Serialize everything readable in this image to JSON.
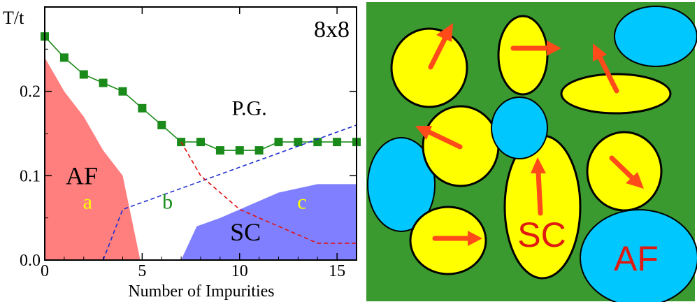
{
  "chart_data": {
    "type": "line",
    "label": "8x8",
    "xlabel": "Number of Impurities",
    "ylabel": "T/t",
    "xlim": [
      0,
      16
    ],
    "ylim": [
      0,
      0.3
    ],
    "x_ticks": [
      "0",
      "5",
      "10",
      "15"
    ],
    "x_tick_values": [
      0,
      5,
      10,
      15
    ],
    "y_ticks": [
      "0.0",
      "0.1",
      "0.2"
    ],
    "y_tick_values": [
      0.0,
      0.1,
      0.2
    ],
    "series": [
      {
        "kind": "markers-line",
        "color": "#1a8a1a",
        "x": [
          0,
          1,
          2,
          3,
          4,
          5,
          6,
          7,
          8,
          9,
          10,
          11,
          12,
          13,
          14,
          15,
          16
        ],
        "y": [
          0.265,
          0.24,
          0.22,
          0.21,
          0.2,
          0.18,
          0.16,
          0.14,
          0.14,
          0.13,
          0.13,
          0.13,
          0.14,
          0.14,
          0.14,
          0.14,
          0.14
        ]
      },
      {
        "kind": "dashed",
        "color": "#1f2fd0",
        "x": [
          3,
          4,
          16
        ],
        "y": [
          0,
          0.06,
          0.16
        ]
      },
      {
        "kind": "dashed",
        "color": "#e01010",
        "x": [
          7,
          8,
          10,
          14,
          16
        ],
        "y": [
          0.14,
          0.1,
          0.06,
          0.02,
          0.02
        ]
      }
    ],
    "regions": [
      {
        "name": "AF",
        "color": "#ff7f7f",
        "x": [
          0,
          0,
          1,
          2,
          3,
          4,
          4.9,
          0
        ],
        "y": [
          0,
          0.24,
          0.2,
          0.17,
          0.13,
          0.1,
          0,
          0
        ]
      },
      {
        "name": "SC",
        "color": "#7f7fff",
        "x": [
          7,
          7.8,
          9,
          10.5,
          12,
          14,
          16,
          16,
          7
        ],
        "y": [
          0,
          0.04,
          0.05,
          0.065,
          0.08,
          0.09,
          0.09,
          0,
          0
        ]
      }
    ],
    "annotations": [
      {
        "text": "AF",
        "x": 1.9,
        "y": 0.09,
        "color": "#000000",
        "size": 36
      },
      {
        "text": "a",
        "x": 2.2,
        "y": 0.061,
        "color": "#ffff00",
        "size": 30
      },
      {
        "text": "b",
        "x": 6.3,
        "y": 0.061,
        "color": "#1a8a1a",
        "size": 30
      },
      {
        "text": "c",
        "x": 13.2,
        "y": 0.061,
        "color": "#ffff00",
        "size": 30
      },
      {
        "text": "SC",
        "x": 10.3,
        "y": 0.023,
        "color": "#000000",
        "size": 36
      },
      {
        "text": "P.G.",
        "x": 10.5,
        "y": 0.172,
        "color": "#000000",
        "size": 30
      }
    ]
  },
  "schematic": {
    "background": "#3a9a30",
    "grain_color": "#ffff00",
    "impurity_color": "#00c8ff",
    "arrow_color": "#ff4a1a",
    "sc_label": "SC",
    "af_label": "AF",
    "label_color": "#e01a10"
  }
}
